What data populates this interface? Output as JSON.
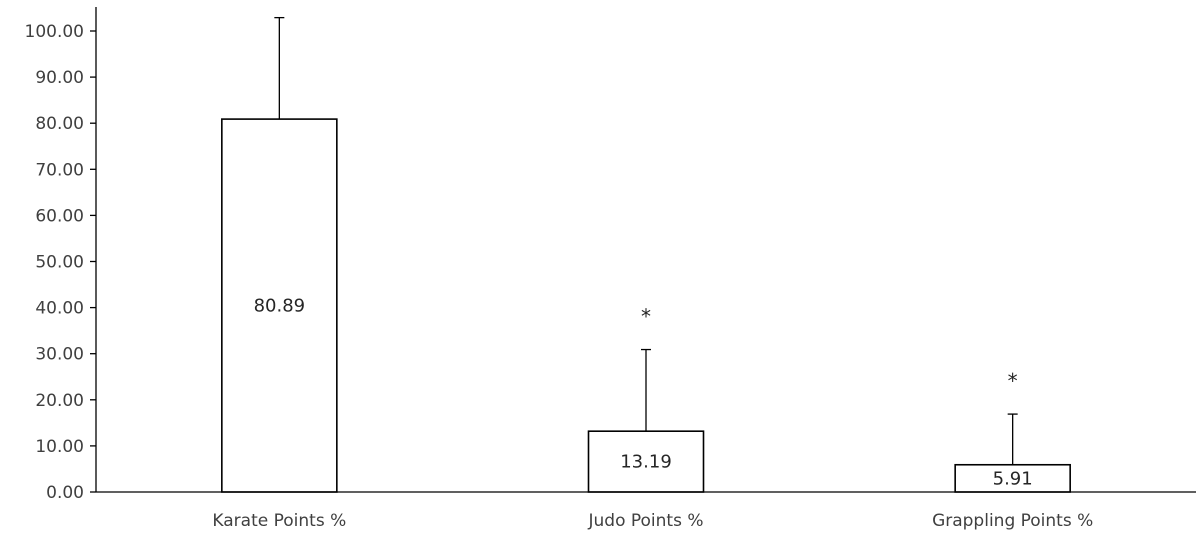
{
  "chart_data": {
    "type": "bar",
    "categories": [
      "Karate Points %",
      "Judo  Points %",
      "Grappling Points %"
    ],
    "values": [
      80.89,
      13.19,
      5.91
    ],
    "data_labels": [
      "80.89",
      "13.19",
      "5.91"
    ],
    "error_upper": [
      102.9,
      30.9,
      16.9
    ],
    "significance_markers": [
      "",
      "*",
      "*"
    ],
    "y_ticks": [
      "0.00",
      "10.00",
      "20.00",
      "30.00",
      "40.00",
      "50.00",
      "60.00",
      "70.00",
      "80.00",
      "90.00",
      "100.00"
    ],
    "ylim": [
      0,
      100
    ],
    "grid": false,
    "legend": "none",
    "colors": {
      "bar_fill": "#ffffff",
      "bar_stroke": "#000000",
      "axis": "#000000",
      "text": "#404040"
    }
  }
}
